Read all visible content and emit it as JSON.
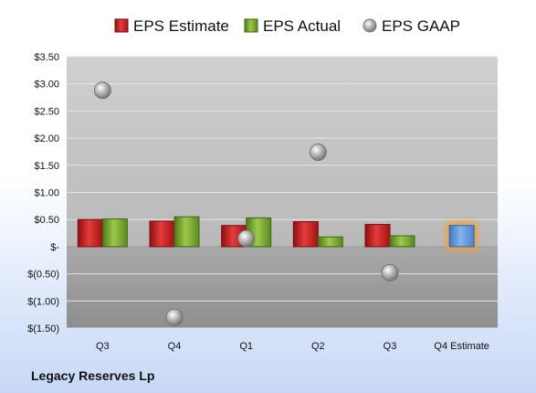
{
  "company": "Legacy Reserves Lp",
  "colors": {
    "estimate": "#cc1c1c",
    "actual": "#7aa62e",
    "gaap": "#9a9a9a",
    "forecast": "#5b93d8",
    "forecast_glow": "#f5a033"
  },
  "chart_data": {
    "type": "bar",
    "categories": [
      "Q3",
      "Q4",
      "Q1",
      "Q2",
      "Q3",
      "Q4 Estimate"
    ],
    "series": [
      {
        "name": "EPS Estimate",
        "values": [
          0.5,
          0.47,
          0.39,
          0.46,
          0.41,
          0.39
        ]
      },
      {
        "name": "EPS Actual",
        "values": [
          0.51,
          0.55,
          0.53,
          0.18,
          0.2,
          null
        ]
      },
      {
        "name": "EPS GAAP",
        "values": [
          2.88,
          -1.3,
          0.15,
          1.74,
          -0.48,
          null
        ]
      }
    ],
    "ylim": [
      -1.5,
      3.5
    ],
    "yticks": [
      3.5,
      3.0,
      2.5,
      2.0,
      1.5,
      1.0,
      0.5,
      0,
      -0.5,
      -1.0,
      -1.5
    ],
    "ytick_labels": [
      "$3.50",
      "$3.00",
      "$2.50",
      "$2.00",
      "$1.50",
      "$1.00",
      "$0.50",
      "$-",
      "$(0.50)",
      "$(1.00)",
      "$(1.50)"
    ],
    "legend_position": "top",
    "grid": true
  }
}
